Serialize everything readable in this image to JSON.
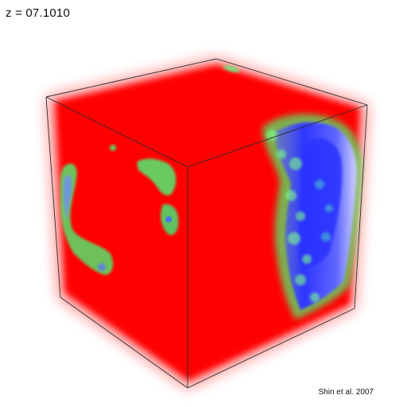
{
  "header": {
    "redshift_label": "z = 07.1010"
  },
  "footer": {
    "credit": "Shin et al. 2007"
  },
  "colors": {
    "background": "#ffffff",
    "volume_primary": "#ff0000",
    "ionized_region": "#2f36ff",
    "ionization_front_edge": "#58e868",
    "cube_edges": "#333333"
  }
}
